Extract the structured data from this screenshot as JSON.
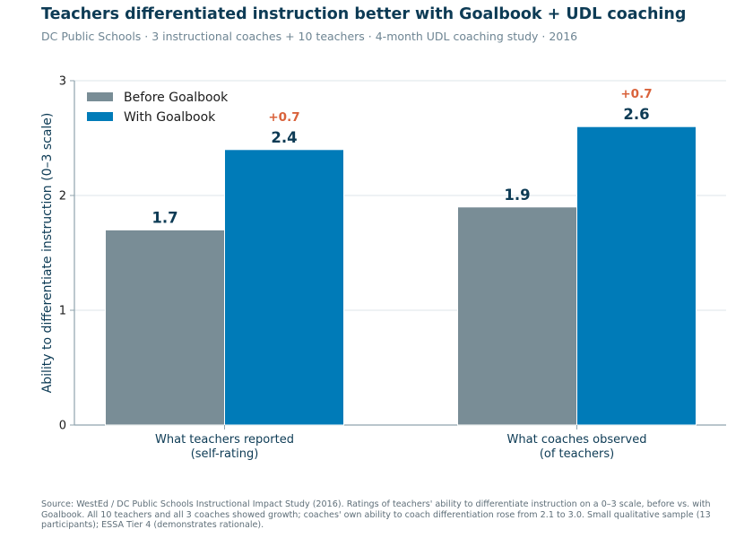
{
  "header": {
    "title": "Teachers differentiated instruction better with Goalbook + UDL coaching",
    "subtitle": "DC Public Schools · 3 instructional coaches + 10 teachers · 4-month UDL coaching study · 2016"
  },
  "footer": {
    "source": "Source: WestEd / DC Public Schools Instructional Impact Study (2016). Ratings of teachers' ability to differentiate instruction on a 0–3 scale, before vs. with Goalbook. All 10 teachers and all 3 coaches showed growth; coaches' own ability to coach differentiation rose from 2.1 to 3.0. Small qualitative sample (13 participants); ESSA Tier 4 (demonstrates rationale)."
  },
  "colors": {
    "before": "#798d96",
    "with": "#007bb8",
    "value_label": "#0d3b55",
    "delta": "#d9623b",
    "grid": "#dde5ea",
    "axis": "#8fa3ad"
  },
  "chart_data": {
    "type": "bar",
    "title": "Teachers differentiated instruction better with Goalbook + UDL coaching",
    "categories": [
      "What teachers reported\n(self-rating)",
      "What coaches observed\n(of teachers)"
    ],
    "series": [
      {
        "name": "Before Goalbook",
        "values": [
          1.7,
          1.9
        ]
      },
      {
        "name": "With Goalbook",
        "values": [
          2.4,
          2.6
        ]
      }
    ],
    "value_labels": [
      [
        "1.7",
        "1.9"
      ],
      [
        "2.4",
        "2.6"
      ]
    ],
    "delta_labels": [
      "+0.7",
      "+0.7"
    ],
    "xlabel": "",
    "ylabel": "Ability to differentiate instruction (0–3 scale)",
    "ylim": [
      0,
      3
    ],
    "yticks": [
      "0",
      "1",
      "2",
      "3"
    ],
    "grid": true,
    "legend": "top-left"
  }
}
